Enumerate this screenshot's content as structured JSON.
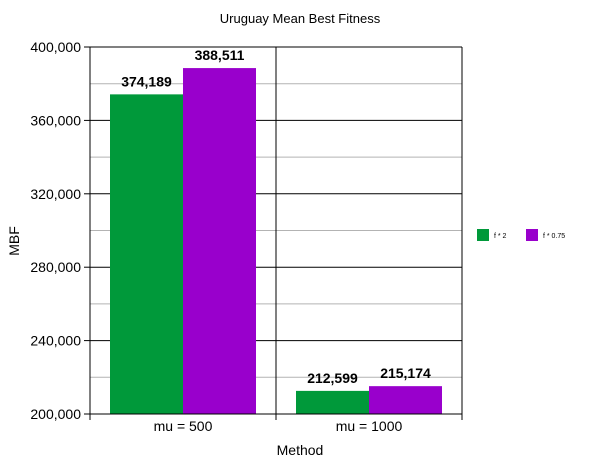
{
  "chart_data": {
    "type": "bar",
    "title": "Uruguay Mean Best Fitness",
    "xlabel": "Method",
    "ylabel": "MBF",
    "categories": [
      "mu = 500",
      "mu = 1000"
    ],
    "series": [
      {
        "name": "f * 2",
        "color": "#00993a",
        "values": [
          374189,
          212599
        ]
      },
      {
        "name": "f * 0.75",
        "color": "#9900cc",
        "values": [
          388511,
          215174
        ]
      }
    ],
    "value_labels": [
      [
        "374,189",
        "212,599"
      ],
      [
        "388,511",
        "215,174"
      ]
    ],
    "ylim": [
      200000,
      400000
    ],
    "yticks": [
      200000,
      240000,
      280000,
      320000,
      360000,
      400000
    ],
    "ytick_labels": [
      "200,000",
      "240,000",
      "280,000",
      "320,000",
      "360,000",
      "400,000"
    ],
    "minor_gridlines_every": 20000,
    "grid": true,
    "legend_position": "right"
  }
}
